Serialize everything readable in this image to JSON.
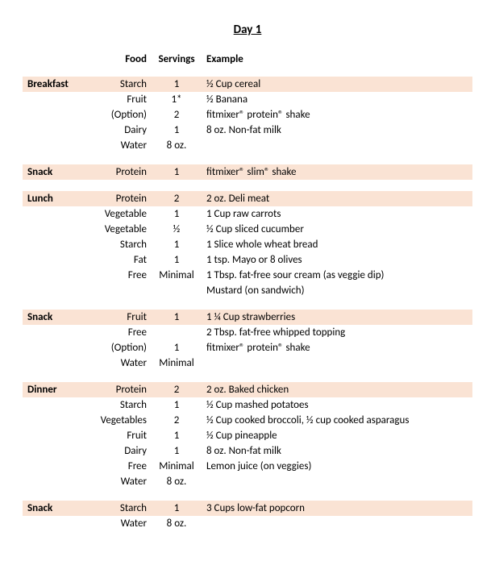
{
  "title": "Day 1",
  "colors": {
    "highlight": "#fae3d4",
    "background": "#ffffff",
    "text": "#000000"
  },
  "typography": {
    "title_fontsize": 15,
    "body_fontsize": 13,
    "font_family": "Calibri"
  },
  "columns": {
    "food": "Food",
    "servings": "Servings",
    "example": "Example"
  },
  "sections": [
    {
      "meal": "Breakfast",
      "rows": [
        {
          "food": "Starch",
          "servings": "1",
          "example": "½ Cup cereal",
          "hl": true
        },
        {
          "food": "Fruit",
          "servings": "1*",
          "example": "½ Banana"
        },
        {
          "food": "(Option)",
          "servings": "2",
          "example": "fitmixer® protein® shake"
        },
        {
          "food": "Dairy",
          "servings": "1",
          "example": "8 oz. Non-fat milk"
        },
        {
          "food": "Water",
          "servings": "8 oz.",
          "example": ""
        }
      ]
    },
    {
      "meal": "Snack",
      "rows": [
        {
          "food": "Protein",
          "servings": "1",
          "example": "fitmixer® slim® shake",
          "hl": true
        }
      ]
    },
    {
      "meal": "Lunch",
      "rows": [
        {
          "food": "Protein",
          "servings": "2",
          "example": "2 oz. Deli meat",
          "hl": true
        },
        {
          "food": "Vegetable",
          "servings": "1",
          "example": "1 Cup raw carrots"
        },
        {
          "food": "Vegetable",
          "servings": "½",
          "example": "½ Cup sliced cucumber"
        },
        {
          "food": "Starch",
          "servings": "1",
          "example": "1 Slice whole wheat bread"
        },
        {
          "food": "Fat",
          "servings": "1",
          "example": "1 tsp. Mayo or 8 olives"
        },
        {
          "food": "Free",
          "servings": "Minimal",
          "example": "1 Tbsp. fat-free sour cream (as veggie dip)"
        },
        {
          "food": "",
          "servings": "",
          "example": "Mustard (on sandwich)"
        }
      ]
    },
    {
      "meal": "Snack",
      "rows": [
        {
          "food": "Fruit",
          "servings": "1",
          "example": "1 ¼ Cup strawberries",
          "hl": true
        },
        {
          "food": "Free",
          "servings": "",
          "example": "2 Tbsp. fat-free whipped topping"
        },
        {
          "food": "(Option)",
          "servings": "1",
          "example": "fitmixer® protein® shake"
        },
        {
          "food": "Water",
          "servings": "Minimal",
          "example": ""
        }
      ]
    },
    {
      "meal": "Dinner",
      "rows": [
        {
          "food": "Protein",
          "servings": "2",
          "example": "2 oz. Baked chicken",
          "hl": true
        },
        {
          "food": "Starch",
          "servings": "1",
          "example": "½ Cup mashed potatoes"
        },
        {
          "food": "Vegetables",
          "servings": "2",
          "example": "½ Cup cooked broccoli, ½ cup cooked asparagus"
        },
        {
          "food": "Fruit",
          "servings": "1",
          "example": "½ Cup pineapple"
        },
        {
          "food": "Dairy",
          "servings": "1",
          "example": "8 oz. Non-fat milk"
        },
        {
          "food": "Free",
          "servings": "Minimal",
          "example": "Lemon juice (on veggies)"
        },
        {
          "food": "Water",
          "servings": "8 oz.",
          "example": ""
        }
      ]
    },
    {
      "meal": "Snack",
      "rows": [
        {
          "food": "Starch",
          "servings": "1",
          "example": "3 Cups low-fat popcorn",
          "hl": true
        },
        {
          "food": "Water",
          "servings": "8 oz.",
          "example": ""
        }
      ]
    }
  ]
}
